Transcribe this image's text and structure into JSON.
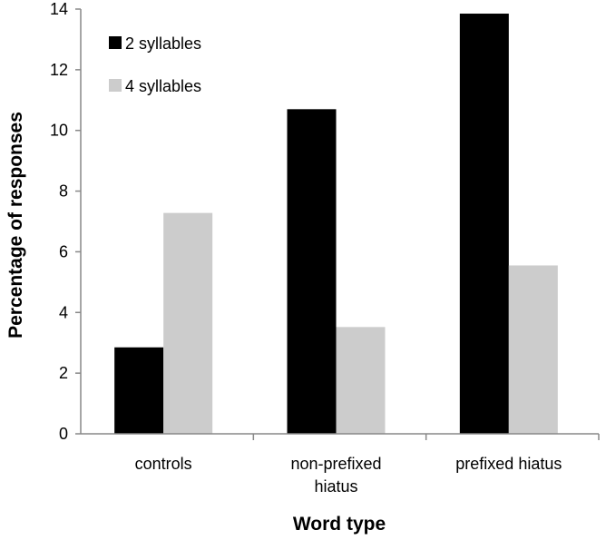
{
  "chart_data": {
    "type": "bar",
    "categories": [
      [
        "controls"
      ],
      [
        "non-prefixed",
        "hiatus"
      ],
      [
        "prefixed hiatus"
      ]
    ],
    "series": [
      {
        "name": "2 syllables",
        "color": "#000000",
        "values": [
          2.85,
          10.7,
          13.85
        ]
      },
      {
        "name": "4 syllables",
        "color": "#cccccc",
        "values": [
          7.28,
          3.52,
          5.55
        ]
      }
    ],
    "xlabel": "Word type",
    "ylabel": "Percentage of responses",
    "ylim": [
      0,
      14
    ],
    "yticks": [
      0,
      2,
      4,
      6,
      8,
      10,
      12,
      14
    ],
    "grid": false,
    "legend_position": "top-left"
  }
}
